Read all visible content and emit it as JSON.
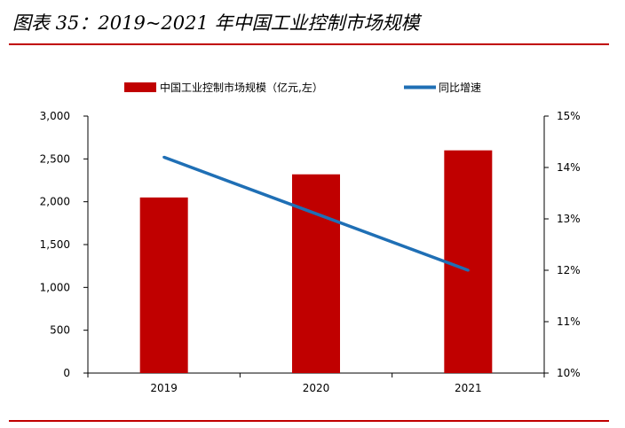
{
  "figure": {
    "title": "图表 35：2019~2021 年中国工业控制市场规模",
    "accent_color": "#c00000"
  },
  "chart_data": {
    "type": "bar",
    "categories": [
      "2019",
      "2020",
      "2021"
    ],
    "series": [
      {
        "name": "中国工业控制市场规模（亿元,左）",
        "kind": "bar",
        "axis": "left",
        "color": "#c00000",
        "values": [
          2050,
          2320,
          2600
        ]
      },
      {
        "name": "同比增速",
        "kind": "line",
        "axis": "right",
        "color": "#1f6fb5",
        "values": [
          14.2,
          13.1,
          12.0
        ]
      }
    ],
    "y_left": {
      "ylim": [
        0,
        3000
      ],
      "ticks": [
        0,
        500,
        1000,
        1500,
        2000,
        2500,
        3000
      ],
      "tick_labels": [
        "0",
        "500",
        "1,000",
        "1,500",
        "2,000",
        "2,500",
        "3,000"
      ]
    },
    "y_right": {
      "ylim": [
        10,
        15
      ],
      "ticks": [
        10,
        11,
        12,
        13,
        14,
        15
      ],
      "tick_labels": [
        "10%",
        "11%",
        "12%",
        "13%",
        "14%",
        "15%"
      ]
    },
    "legend": "top-center",
    "grid": false
  }
}
